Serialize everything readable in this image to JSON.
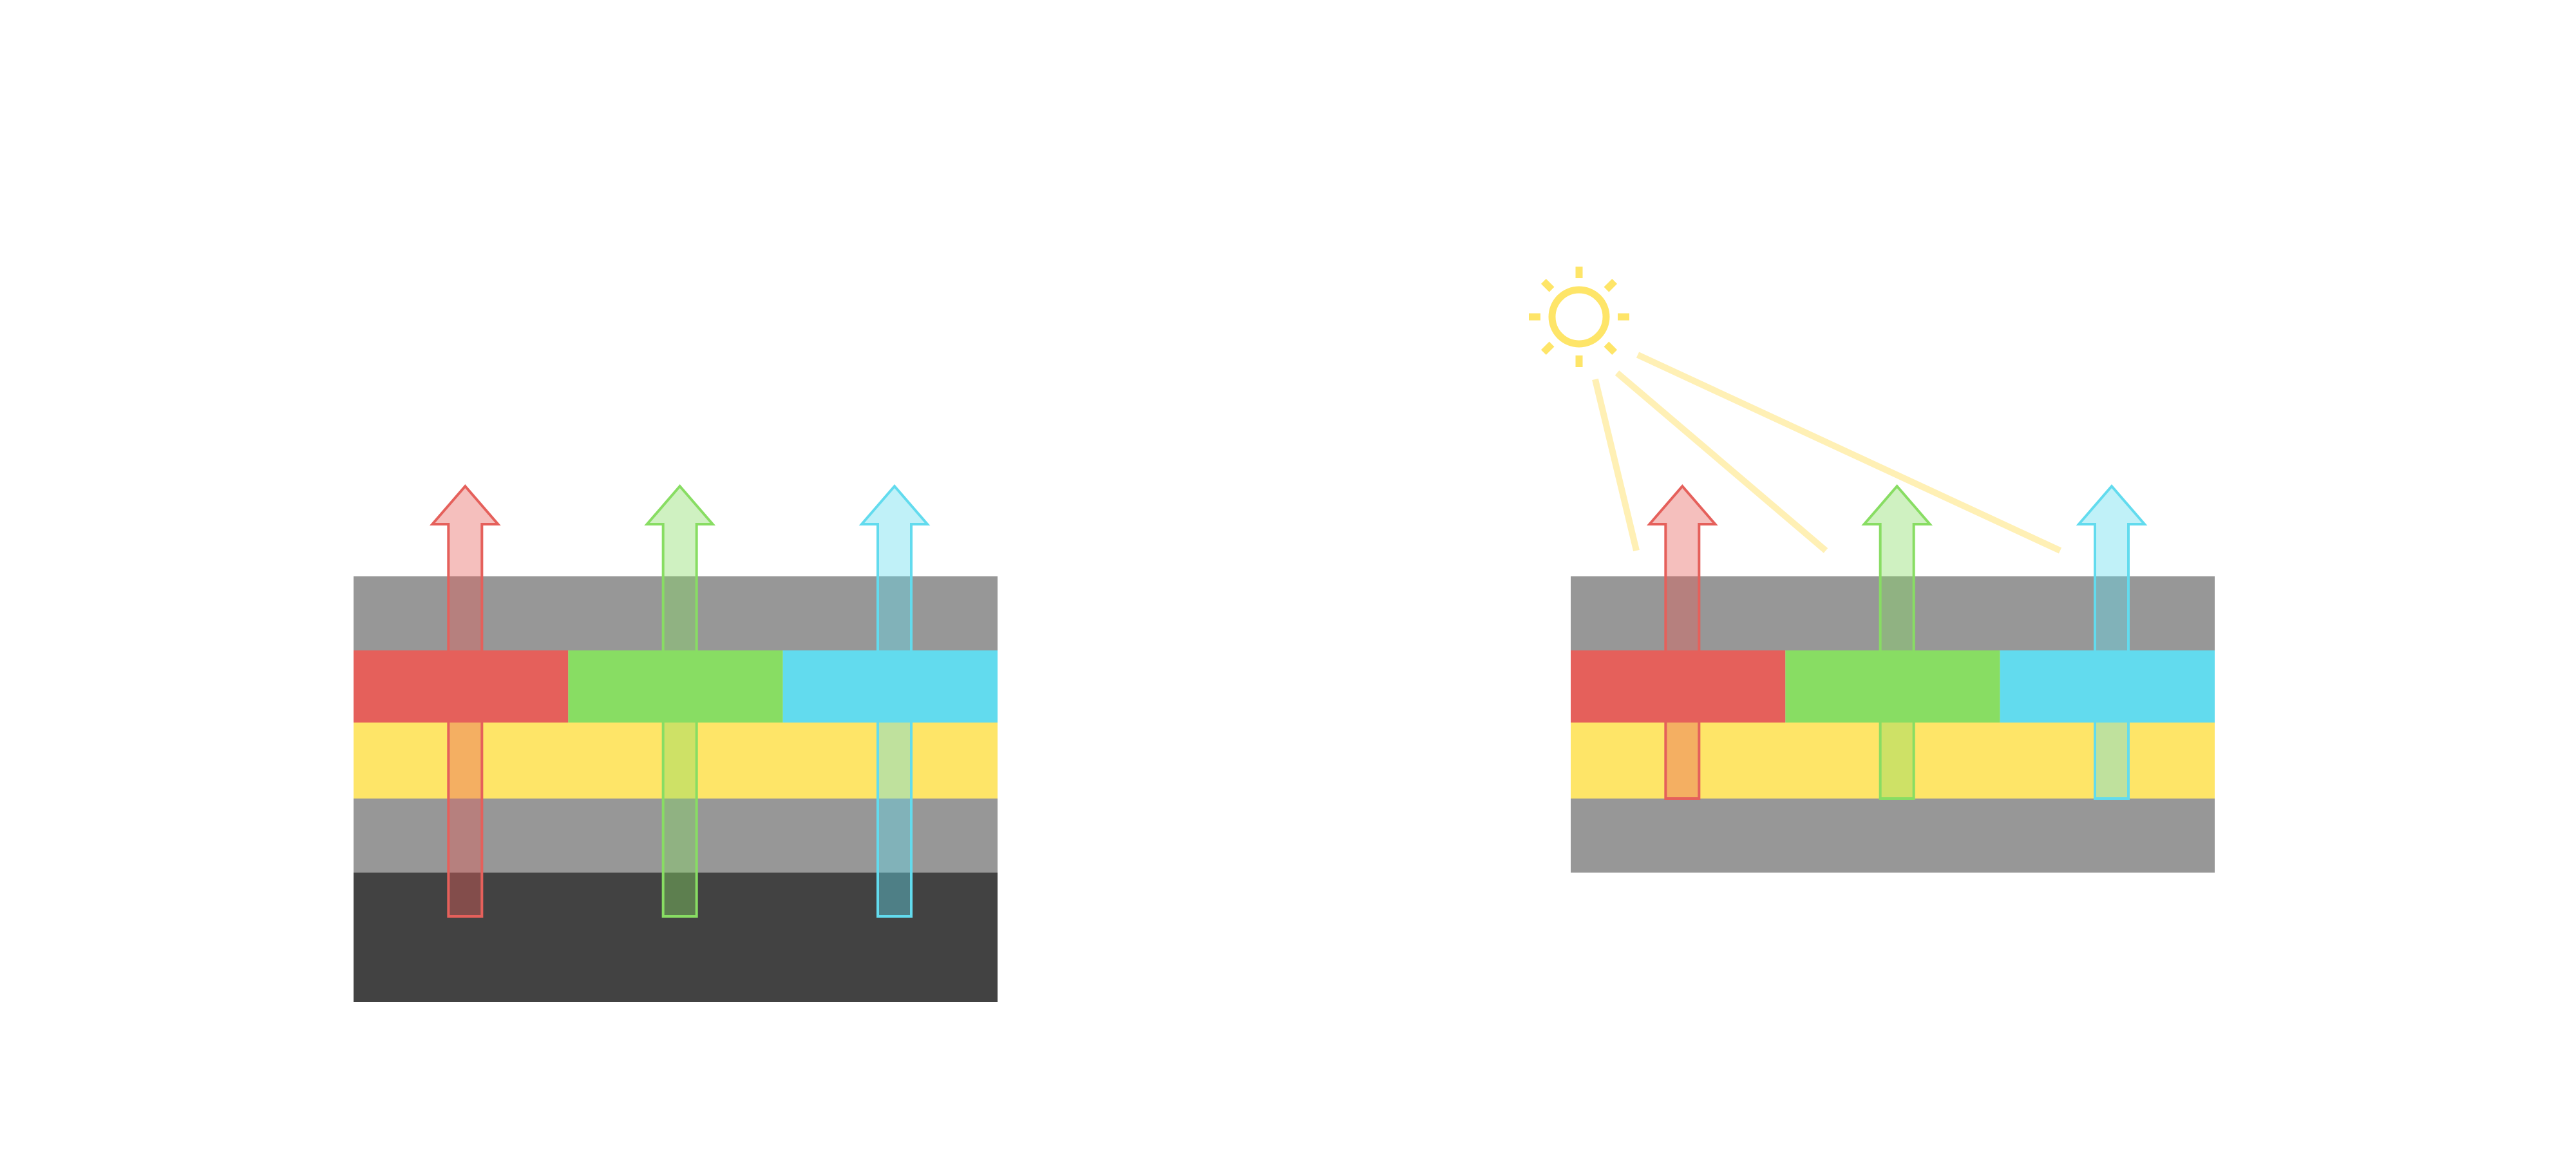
{
  "colors": {
    "background": "#ffffff",
    "gray_layer": "#979797",
    "dark_layer": "#424242",
    "yellow_layer": "#fee568",
    "red": "#e5605b",
    "green": "#88dd63",
    "cyan": "#62dbee",
    "sun": "#fee568",
    "light_ray": "#fff0b5"
  },
  "icons": {
    "sun": "sun-icon",
    "arrow": "up-arrow-icon"
  },
  "arrow_colors": [
    "#e5605b",
    "#88dd63",
    "#62dbee"
  ],
  "left_stack": {
    "layers": [
      "gray",
      "color-filter",
      "yellow",
      "gray",
      "dark"
    ]
  },
  "right_stack": {
    "layers": [
      "gray",
      "color-filter",
      "yellow",
      "gray"
    ],
    "light_source": "sun"
  }
}
